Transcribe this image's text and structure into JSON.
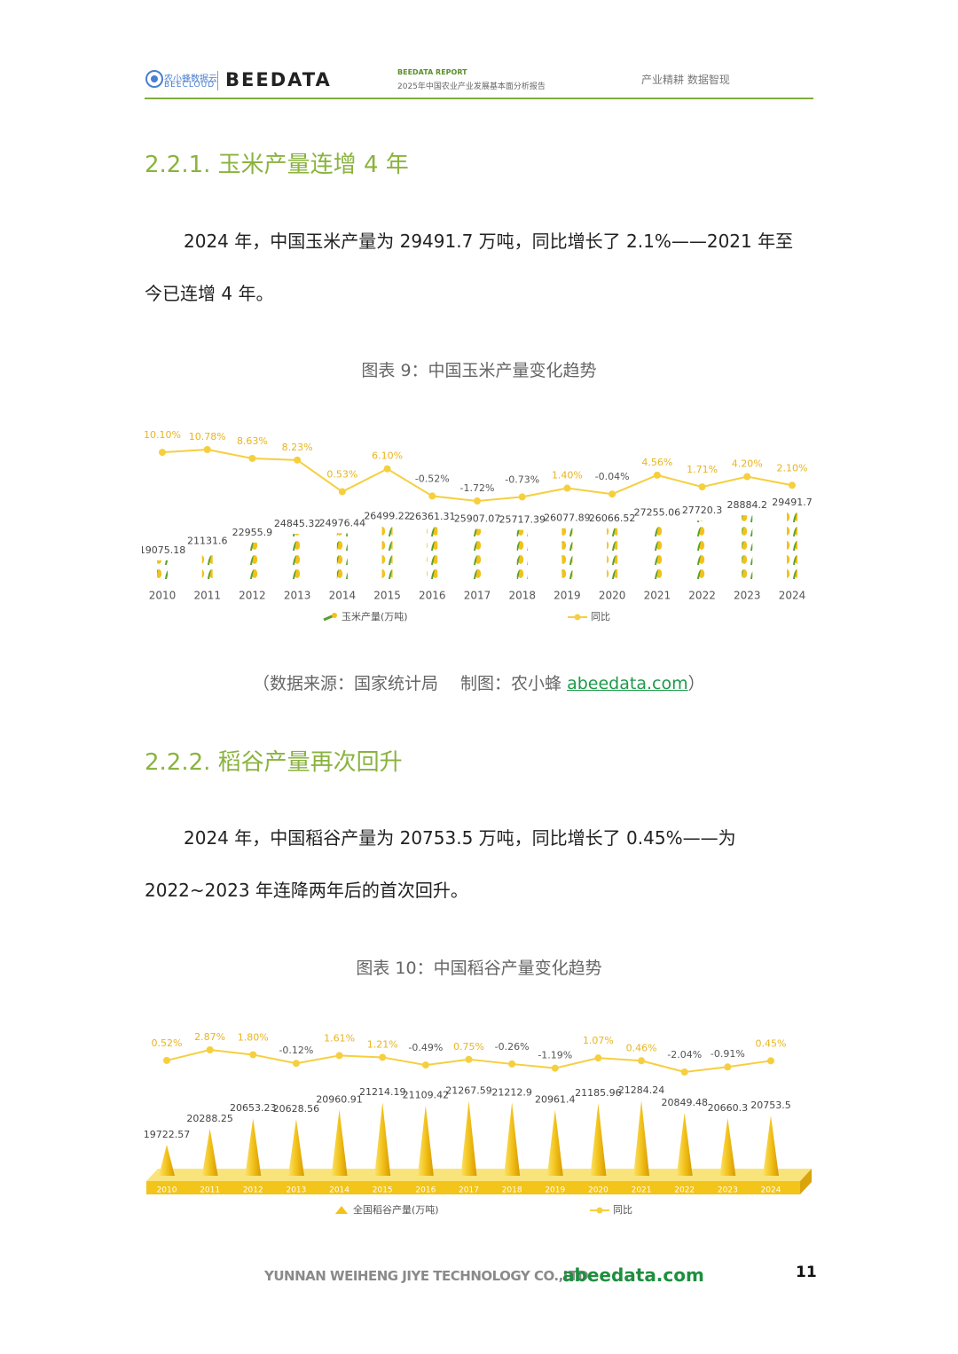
{
  "header": {
    "logo_text": "农小蜂数据云",
    "logo_subtext": "BEECLOUD",
    "brand": "BEEDATA",
    "report_label": "BEEDATA REPORT",
    "report_title": "2025年中国农业产业发展基本面分析报告",
    "slogan": "产业精耕  数据智现"
  },
  "sections": [
    {
      "heading": "2.2.1.  玉米产量连增 4 年",
      "paragraph": [
        "2024 年，中国玉米产量为 29491.7 万吨，同比增长了 2.1%——2021 年至",
        "今已连增 4 年。"
      ],
      "source_prefix": "（数据来源：国家统计局　 制图：农小蜂  ",
      "source_link": "abeedata.com",
      "source_suffix": "）"
    },
    {
      "heading": "2.2.2.  稻谷产量再次回升",
      "paragraph": [
        "2024 年，中国稻谷产量为 20753.5 万吨，同比增长了 0.45%——为",
        "2022~2023 年连降两年后的首次回升。"
      ]
    }
  ],
  "chart_data": [
    {
      "type": "bar",
      "title": "图表 9：中国玉米产量变化趋势",
      "categories": [
        "2010",
        "2011",
        "2012",
        "2013",
        "2014",
        "2015",
        "2016",
        "2017",
        "2018",
        "2019",
        "2020",
        "2021",
        "2022",
        "2023",
        "2024"
      ],
      "series": [
        {
          "name": "玉米产量(万吨)",
          "color": "#f2c21b",
          "values": [
            19075.18,
            21131.6,
            22955.9,
            24845.32,
            24976.44,
            26499.22,
            26361.31,
            25907.07,
            25717.39,
            26077.89,
            26066.52,
            27255.06,
            27720.3,
            28884.2,
            29491.7
          ]
        },
        {
          "name": "同比",
          "color": "#f5cf3f",
          "axis": "y2",
          "values": [
            10.1,
            10.78,
            8.63,
            8.23,
            0.53,
            6.1,
            -0.52,
            -1.72,
            -0.73,
            1.4,
            -0.04,
            4.56,
            1.71,
            4.2,
            2.1
          ],
          "value_labels": [
            "10.10%",
            "10.78%",
            "8.63%",
            "8.23%",
            "0.53%",
            "6.10%",
            "-0.52%",
            "-1.72%",
            "-0.73%",
            "1.40%",
            "-0.04%",
            "4.56%",
            "1.71%",
            "4.20%",
            "2.10%"
          ]
        }
      ]
    },
    {
      "type": "bar",
      "title": "图表 10：中国稻谷产量变化趋势",
      "categories": [
        "2010",
        "2011",
        "2012",
        "2013",
        "2014",
        "2015",
        "2016",
        "2017",
        "2018",
        "2019",
        "2020",
        "2021",
        "2022",
        "2023",
        "2024"
      ],
      "series": [
        {
          "name": "全国稻谷产量(万吨)",
          "color": "#f2c21b",
          "values": [
            19722.57,
            20288.25,
            20653.23,
            20628.56,
            20960.91,
            21214.19,
            21109.42,
            21267.59,
            21212.9,
            20961.4,
            21185.96,
            21284.24,
            20849.48,
            20660.3,
            20753.5
          ]
        },
        {
          "name": "同比",
          "color": "#f5cf3f",
          "axis": "y2",
          "values": [
            0.52,
            2.87,
            1.8,
            -0.12,
            1.61,
            1.21,
            -0.49,
            0.75,
            -0.26,
            -1.19,
            1.07,
            0.46,
            -2.04,
            -0.91,
            0.45
          ],
          "value_labels": [
            "0.52%",
            "2.87%",
            "1.80%",
            "-0.12%",
            "1.61%",
            "1.21%",
            "-0.49%",
            "0.75%",
            "-0.26%",
            "-1.19%",
            "1.07%",
            "0.46%",
            "-2.04%",
            "-0.91%",
            "0.45%"
          ]
        }
      ]
    }
  ],
  "footer": {
    "company": "YUNNAN WEIHENG JIYE TECHNOLOGY CO.,LTD.",
    "site": "abeedata.com",
    "page_number": "11"
  }
}
